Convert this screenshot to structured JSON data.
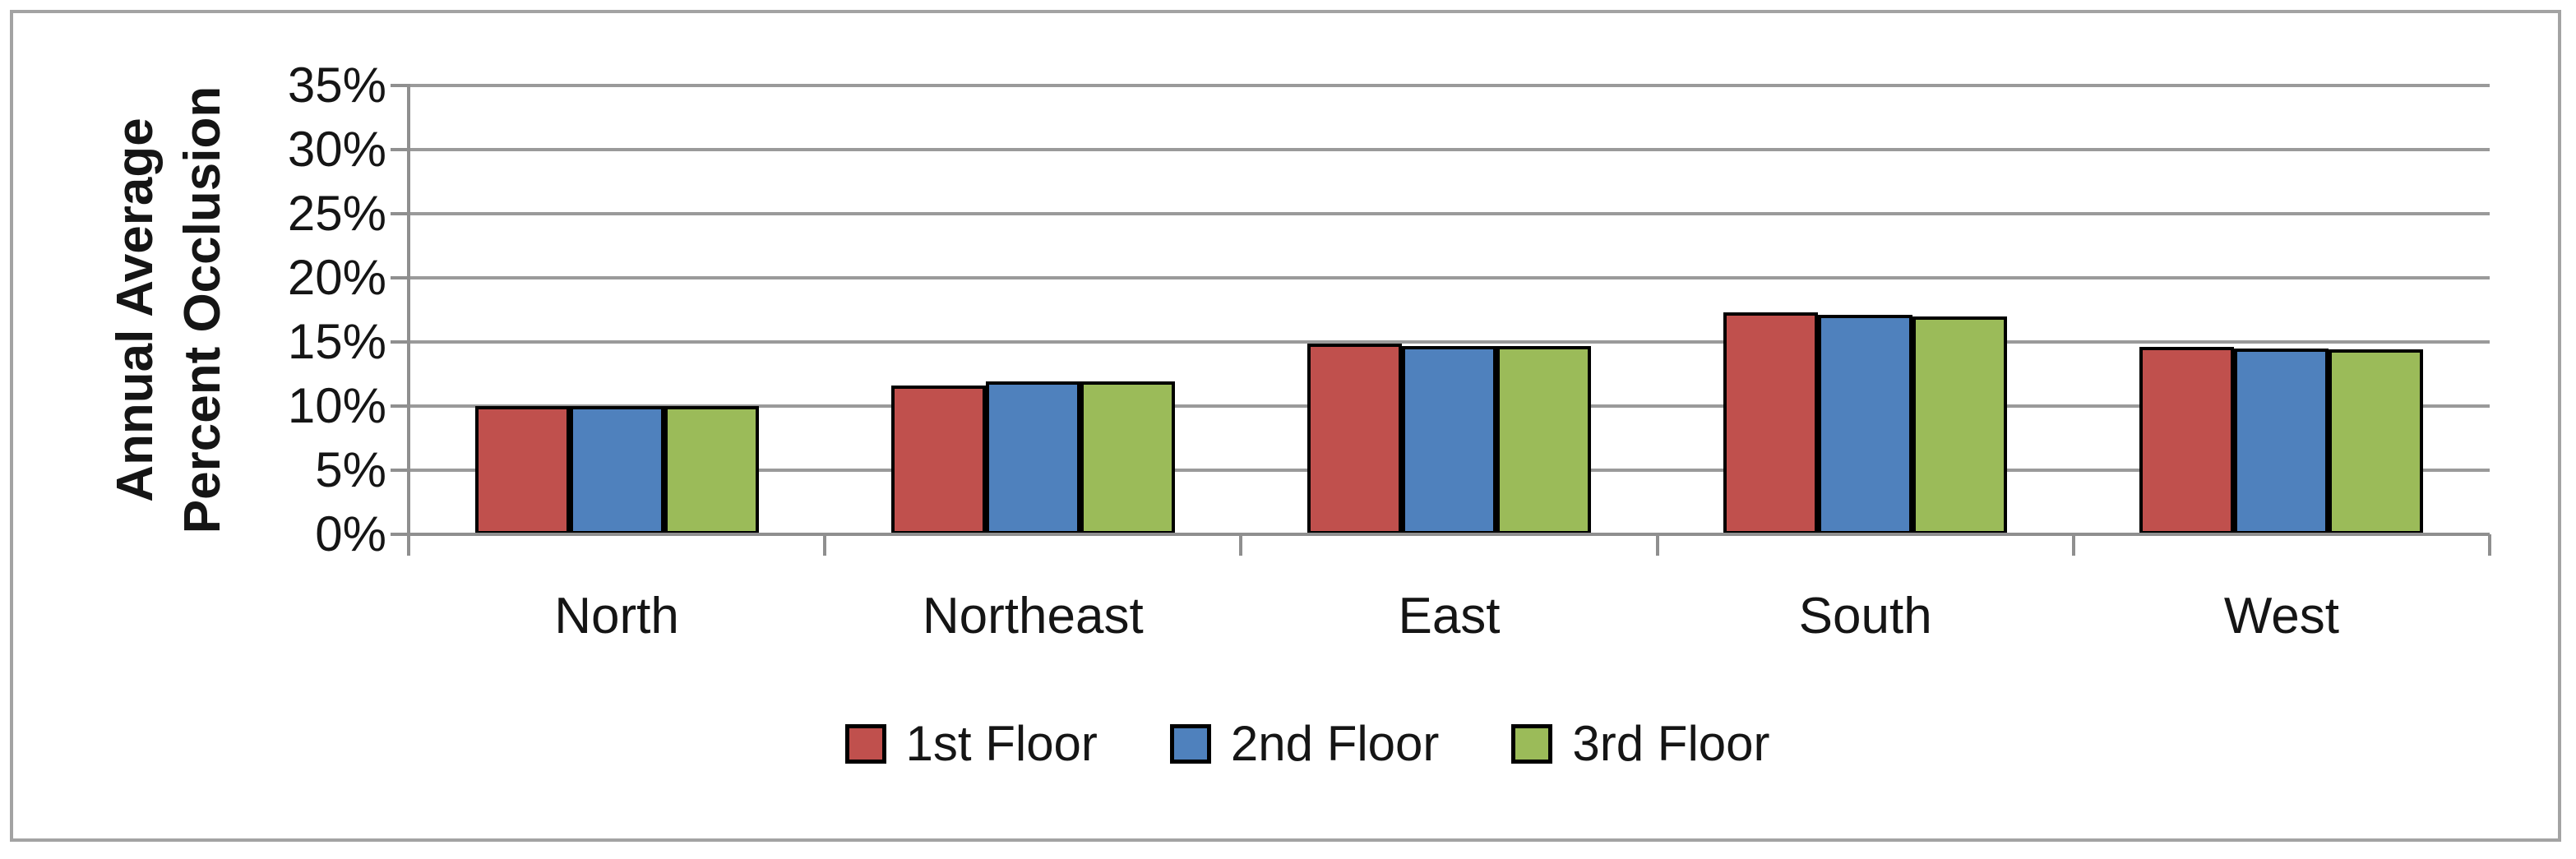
{
  "chart_data": {
    "type": "bar",
    "title": "",
    "categories": [
      "North",
      "Northeast",
      "East",
      "South",
      "West"
    ],
    "series": [
      {
        "name": "1st Floor",
        "color": "#C0504D",
        "values": [
          10.0,
          11.6,
          14.9,
          17.3,
          14.6
        ]
      },
      {
        "name": "2nd Floor",
        "color": "#4F81BD",
        "values": [
          10.0,
          11.9,
          14.7,
          17.1,
          14.5
        ]
      },
      {
        "name": "3rd Floor",
        "color": "#9BBB59",
        "values": [
          10.0,
          11.9,
          14.7,
          17.0,
          14.4
        ]
      }
    ],
    "ylabel_lines": [
      "Annual Average",
      "Percent Occlusion"
    ],
    "ytick_labels": [
      "0%",
      "5%",
      "10%",
      "15%",
      "20%",
      "25%",
      "30%",
      "35%"
    ],
    "ylim": [
      0,
      35
    ],
    "ytick_step": 5,
    "grid": true,
    "legend_position": "bottom",
    "bar_border_color": "#000000",
    "axis_color": "#8f8f8f"
  }
}
